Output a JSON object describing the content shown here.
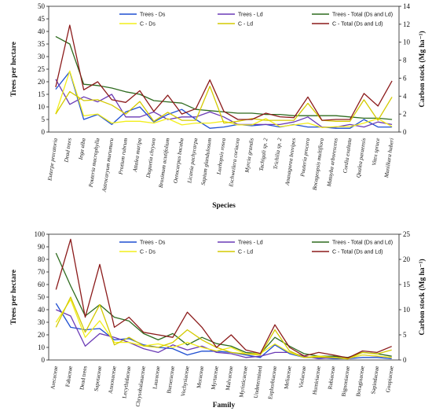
{
  "chart_data": [
    {
      "type": "line",
      "xlabel": "Species",
      "ylabel": "Trees per hectare",
      "y2label": "Carbon stock (Mg ha⁻¹)",
      "ylim": [
        0,
        50
      ],
      "y2lim": [
        0,
        14
      ],
      "yticks": [
        0,
        5,
        10,
        15,
        20,
        25,
        30,
        35,
        40,
        45,
        50
      ],
      "y2ticks": [
        0,
        2,
        4,
        6,
        8,
        10,
        12,
        14
      ],
      "legend_position": "top",
      "italic_categories": true,
      "categories": [
        "Euterpe precatoria",
        "Dead trees",
        "Inga alba",
        "Pouteria macrophylla",
        "Astrocaryum murumuru",
        "Protium rubrum",
        "Attalea maripa",
        "Duguetia chrysea",
        "Brosimum acutifolium",
        "Oenocarpus bacaba",
        "Licania pachycarpa",
        "Sapium glandulosum",
        "Luehopsis rosea",
        "Eschweilera coriacea",
        "Myrcia grandis",
        "Tachigali sp. 2",
        "Trichilia sp. 2",
        "Anaxagorea brevipes",
        "Pouteria procera",
        "Bocageopsis multiflora",
        "Matayba arborescens",
        "Cordia exaltata",
        "Qualea paraensis",
        "Vitex spruce",
        "Manilkara huberi"
      ],
      "series": [
        {
          "name": "Trees - Ds",
          "color": "#1f4fd1",
          "axis": "left",
          "values": [
            17,
            24,
            5,
            7,
            3,
            8,
            10,
            4,
            7,
            9,
            5,
            1.5,
            2,
            3,
            2.5,
            3,
            2,
            3,
            2,
            2,
            1.5,
            1.5,
            5,
            2,
            2
          ]
        },
        {
          "name": "Trees - Ld",
          "color": "#6a3ab5",
          "axis": "left",
          "values": [
            21,
            11,
            14,
            12,
            15,
            6,
            6,
            8,
            5,
            6,
            6,
            8,
            6,
            3,
            3,
            3,
            3,
            4,
            6,
            2,
            2,
            3,
            2,
            4,
            3
          ]
        },
        {
          "name": "Trees - Total (Ds and Ld)",
          "color": "#2e6b1f",
          "axis": "left",
          "values": [
            38,
            35,
            19,
            18.5,
            17.5,
            16,
            15,
            12.5,
            12,
            11.5,
            9,
            8.5,
            8,
            7.5,
            7.5,
            7,
            7,
            6.5,
            6.5,
            6.5,
            6.5,
            6,
            5.5,
            5.5,
            5
          ]
        },
        {
          "name": "C - Ds",
          "color": "#f2ee1a",
          "axis": "right",
          "values": [
            2.0,
            6.8,
            1.8,
            2.0,
            1.0,
            1.2,
            1.2,
            1.0,
            1.5,
            0.8,
            1.0,
            1.0,
            1.2,
            0.8,
            0.8,
            1.5,
            0.6,
            0.8,
            1.0,
            0.5,
            0.6,
            0.6,
            1.0,
            1.5,
            0.6
          ]
        },
        {
          "name": "C - Ld",
          "color": "#d4ca00",
          "axis": "right",
          "values": [
            2.0,
            4.5,
            3.5,
            3.6,
            3.0,
            2.0,
            3.4,
            1.2,
            2.2,
            1.3,
            1.3,
            5.1,
            1.0,
            1.2,
            1.5,
            1.3,
            1.3,
            1.3,
            3.2,
            1.3,
            1.2,
            1.2,
            3.6,
            1.3,
            3.9
          ]
        },
        {
          "name": "C - Total (Ds and Ld)",
          "color": "#8b1a1a",
          "axis": "right",
          "values": [
            5.0,
            11.9,
            4.7,
            5.6,
            3.6,
            3.3,
            4.6,
            2.3,
            4.1,
            2.0,
            2.6,
            5.8,
            2.3,
            1.4,
            1.4,
            2.1,
            1.7,
            1.6,
            3.9,
            1.3,
            1.4,
            1.4,
            4.3,
            2.9,
            5.7
          ]
        }
      ]
    },
    {
      "type": "line",
      "xlabel": "Family",
      "ylabel": "Trees per hectare",
      "y2label": "Carbon stock (Mg ha⁻¹)",
      "ylim": [
        0,
        100
      ],
      "y2lim": [
        0,
        25
      ],
      "yticks": [
        0,
        10,
        20,
        30,
        40,
        50,
        60,
        70,
        80,
        90,
        100
      ],
      "y2ticks": [
        0,
        5,
        10,
        15,
        20,
        25
      ],
      "legend_position": "top",
      "italic_categories": false,
      "categories": [
        "Arecaceae",
        "Fabaceae",
        "Dead trees",
        "Sapotaceae",
        "Annonaceae",
        "Lecythidaceae",
        "Chrysobalanaceae",
        "Lauraceae",
        "Burseraceae",
        "Vochysiaceae",
        "Moraceae",
        "Myrtaceae",
        "Malvaceae",
        "Myristicaceae",
        "Undetermined",
        "Euphorbiaceae",
        "Meliaceae",
        "Violaceae",
        "Humiriaceae",
        "Rubiaceae",
        "Bignoniaceae",
        "Boraginaceae",
        "Sapindaceae",
        "Goupiaceae"
      ],
      "series": [
        {
          "name": "Trees - Ds",
          "color": "#1f4fd1",
          "axis": "left",
          "values": [
            45,
            26,
            24,
            25,
            16,
            17,
            12,
            10,
            9,
            4,
            7,
            7,
            6,
            4,
            2,
            12,
            5,
            2,
            2,
            1,
            1,
            2,
            2,
            1
          ]
        },
        {
          "name": "Trees - Ld",
          "color": "#6a3ab5",
          "axis": "left",
          "values": [
            40,
            35,
            11,
            21,
            18,
            14,
            9,
            6,
            12,
            8,
            11,
            6,
            5,
            2,
            3,
            6,
            6,
            3,
            1,
            2,
            1,
            4,
            3,
            2
          ]
        },
        {
          "name": "Trees - Total (Ds and Ld)",
          "color": "#2e6b1f",
          "axis": "left",
          "values": [
            85,
            59,
            35,
            44,
            34,
            31,
            21,
            16,
            21,
            12,
            18,
            13,
            11,
            6,
            5,
            18,
            11,
            5,
            3,
            3,
            2,
            6,
            5,
            3
          ]
        },
        {
          "name": "C - Ds",
          "color": "#f2ee1a",
          "axis": "right",
          "values": [
            7.5,
            12.0,
            4.5,
            7.8,
            3.5,
            3.5,
            2.8,
            3.2,
            2.5,
            3.5,
            2.5,
            1.8,
            2.5,
            1.2,
            1.3,
            3.2,
            1.5,
            0.5,
            0.8,
            0.5,
            0.3,
            1.0,
            0.8,
            0.5
          ]
        },
        {
          "name": "C - Ld",
          "color": "#d4ca00",
          "axis": "right",
          "values": [
            6.5,
            12.5,
            5.5,
            11.0,
            3.0,
            4.5,
            2.8,
            2.5,
            3.5,
            6.0,
            4.0,
            2.5,
            1.5,
            1.2,
            1.0,
            6.0,
            1.8,
            0.5,
            0.6,
            0.5,
            0.2,
            1.5,
            1.2,
            2.0
          ]
        },
        {
          "name": "C - Total (Ds and Ld)",
          "color": "#8b1a1a",
          "axis": "right",
          "values": [
            14.0,
            24.0,
            8.5,
            19.0,
            6.5,
            8.5,
            5.5,
            5.0,
            4.5,
            9.5,
            6.5,
            2.5,
            5.0,
            2.0,
            1.3,
            7.0,
            2.5,
            0.8,
            1.5,
            1.0,
            0.4,
            1.8,
            1.5,
            2.7
          ]
        }
      ]
    }
  ]
}
